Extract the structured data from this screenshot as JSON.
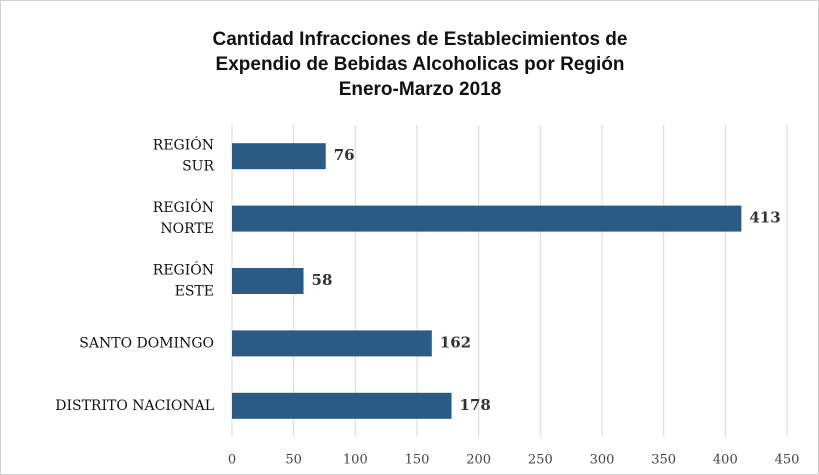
{
  "chart_data": {
    "type": "barh",
    "title": [
      "Cantidad Infracciones de Establecimientos de",
      "Expendio de Bebidas Alcoholicas por Región",
      "Enero-Marzo 2018"
    ],
    "categories": [
      [
        "REGIÓN",
        "SUR"
      ],
      [
        "REGIÓN",
        "NORTE"
      ],
      [
        "REGIÓN",
        "ESTE"
      ],
      [
        "SANTO DOMINGO"
      ],
      [
        "DISTRITO NACIONAL"
      ]
    ],
    "values": [
      76,
      413,
      58,
      162,
      178
    ],
    "color": "#2b5a85",
    "xlim": [
      0,
      450
    ],
    "xticks": [
      0,
      50,
      100,
      150,
      200,
      250,
      300,
      350,
      400,
      450
    ],
    "grid": true
  }
}
